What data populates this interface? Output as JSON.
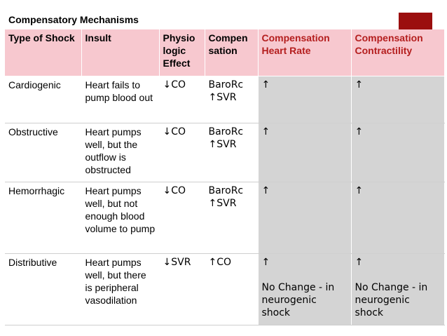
{
  "title": "Compensatory Mechanisms",
  "columns": [
    "Type of Shock",
    "Insult",
    "Physio logic Effect",
    "Compen sation",
    "Compensation Heart Rate",
    "Compensation Contractility"
  ],
  "rows": [
    {
      "type": "Cardiogenic",
      "insult": "Heart fails to pump blood out",
      "physio": "↓CO",
      "compensation": [
        "BaroRc",
        "↑SVR"
      ],
      "heart_rate": "↑",
      "contractility": "↑"
    },
    {
      "type": "Obstructive",
      "insult": "Heart pumps well, but the outflow is obstructed",
      "physio": "↓CO",
      "compensation": [
        "BaroRc",
        "↑SVR"
      ],
      "heart_rate": "↑",
      "contractility": "↑"
    },
    {
      "type": "Hemorrhagic",
      "insult": "Heart pumps well, but not enough blood volume to pump",
      "physio": "↓CO",
      "compensation": [
        "BaroRc",
        "↑SVR"
      ],
      "heart_rate": "↑",
      "contractility": "↑"
    },
    {
      "type": "Distributive",
      "insult": "Heart pumps well, but there is peripheral vasodilation",
      "physio": "↓SVR",
      "compensation": [
        "↑CO"
      ],
      "heart_rate": "↑",
      "heart_rate_note": "No Change - in neurogenic shock",
      "contractility": "↑",
      "contractility_note": "No Change - in neurogenic shock"
    }
  ],
  "colors": {
    "header_bg": "#f7c8cf",
    "header_red_text": "#b41e1e",
    "shaded_cell": "#d4d4d4",
    "accent_box": "#9b0e0e"
  }
}
